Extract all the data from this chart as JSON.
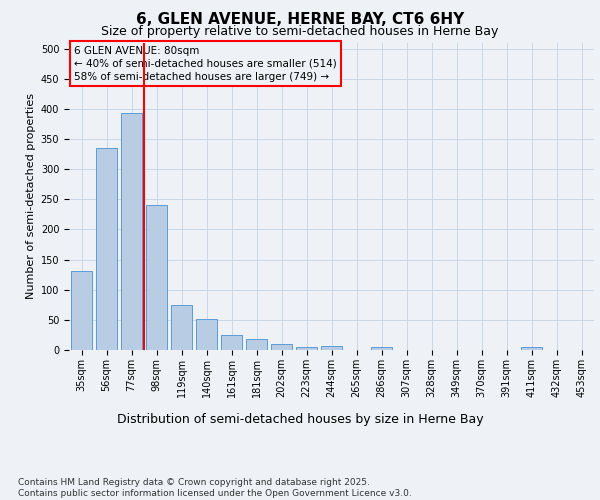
{
  "title1": "6, GLEN AVENUE, HERNE BAY, CT6 6HY",
  "title2": "Size of property relative to semi-detached houses in Herne Bay",
  "xlabel": "Distribution of semi-detached houses by size in Herne Bay",
  "ylabel": "Number of semi-detached properties",
  "categories": [
    "35sqm",
    "56sqm",
    "77sqm",
    "98sqm",
    "119sqm",
    "140sqm",
    "161sqm",
    "181sqm",
    "202sqm",
    "223sqm",
    "244sqm",
    "265sqm",
    "286sqm",
    "307sqm",
    "328sqm",
    "349sqm",
    "370sqm",
    "391sqm",
    "411sqm",
    "432sqm",
    "453sqm"
  ],
  "values": [
    131,
    335,
    393,
    240,
    75,
    51,
    25,
    19,
    10,
    5,
    6,
    0,
    5,
    0,
    0,
    0,
    0,
    0,
    5,
    0,
    0
  ],
  "bar_color": "#b8cce4",
  "bar_edge_color": "#5b9bd5",
  "vline_x": 2.5,
  "vline_color": "red",
  "annotation_title": "6 GLEN AVENUE: 80sqm",
  "annotation_line1": "← 40% of semi-detached houses are smaller (514)",
  "annotation_line2": "58% of semi-detached houses are larger (749) →",
  "annotation_box_color": "red",
  "ylim": [
    0,
    510
  ],
  "yticks": [
    0,
    50,
    100,
    150,
    200,
    250,
    300,
    350,
    400,
    450,
    500
  ],
  "footnote": "Contains HM Land Registry data © Crown copyright and database right 2025.\nContains public sector information licensed under the Open Government Licence v3.0.",
  "bg_color": "#eef2f7",
  "grid_color": "#c8d8e8",
  "title1_fontsize": 11,
  "title2_fontsize": 9,
  "xlabel_fontsize": 9,
  "ylabel_fontsize": 8,
  "tick_fontsize": 7,
  "footnote_fontsize": 6.5,
  "ann_fontsize": 7.5
}
